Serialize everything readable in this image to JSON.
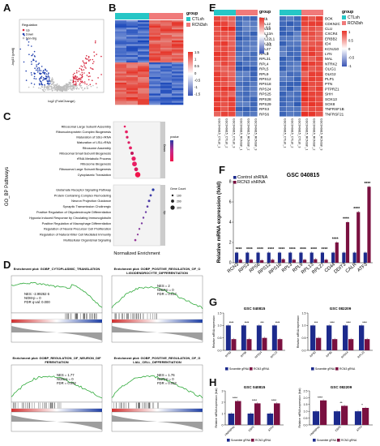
{
  "panels": {
    "A": "A",
    "B": "B",
    "C": "C",
    "D": "D",
    "E": "E",
    "F": "F",
    "G": "G",
    "H": "H"
  },
  "panelA": {
    "legend_title": "Regulation",
    "legend": [
      "Up",
      "Down",
      "Non-Sig"
    ],
    "xlabel": "log2 (FoldChange)",
    "ylabel": "-log10 (padj)",
    "colors": {
      "up": "#d7263d",
      "down": "#1f3fae",
      "ns": "#bdbdbd"
    }
  },
  "panelB": {
    "legend_title": "group",
    "groups": [
      "CTLsh",
      "RCN3sh"
    ],
    "group_colors": [
      "#26c6c6",
      "#f07a7a"
    ],
    "scale_ticks": [
      "1.5",
      "1",
      "0.5",
      "0",
      "-0.5",
      "-1",
      "-1.5"
    ]
  },
  "panelC": {
    "ylabel": "GO_BP Pathways",
    "xlabel": "Normalized Enrichment",
    "down_terms": [
      "Ribosomal Large Subunit Assembly",
      "Ribonucleoprotein Complex Biogenesis",
      "Maturation of SSU-rRNA",
      "Maturation of LSU-rRNA",
      "Ribosome Assembly",
      "Ribosomal Small Subunit Biogenesis",
      "rRNA Metabolic Process",
      "Ribosome Biogenesis",
      "Ribosomal Large Subunit Biogenesis",
      "Cytoplasmic Translation"
    ],
    "up_terms": [
      "Glutamate Receptor Signaling Pathway",
      "Protein Containing Complex Remodeling",
      "Neuron Projection Guidance",
      "Synaptic Transmission Cholinergic",
      "Positive Regulation of Oligodendrocyte Differentiation",
      "Hypoxia Induced Response by Circulating Immunoglobulin",
      "Positive Regulation of Macrophage Differentiation",
      "Regulation of Neural Precursor Cell Proliferation",
      "Regulation of Natural Killer Cell Mediated Immunity",
      "Multicellular Organismal Signaling"
    ],
    "strip_labels": [
      "Down",
      "Up"
    ],
    "legend_pvalue_title": "pvalue",
    "legend_gene_count_title": "Gene Count",
    "gene_count_labels": [
      "100",
      "200",
      "300"
    ]
  },
  "panelD": {
    "plots": [
      {
        "title": "Enrichment plot: GOBP_CYTOPLASMIC_TRANSLATION",
        "nes": "NES: -2.99262 6",
        "nom": "NOM-p = 0",
        "fdr": "FDR q-val: 0.000"
      },
      {
        "title": "Enrichment plot: GOBP_POSITIVE_REGULATION_OF_OLIGODENDROCYTE_DIFFERENTIATION",
        "nes": "NES = 2",
        "nom": "NOM-p = 0",
        "fdr": "FDR = 0.017"
      },
      {
        "title": "Enrichment plot: GOBP_REGULATION_OF_NEURON_DIFFERENTIATION",
        "nes": "NES = 1.77",
        "nom": "NOM-p = 0",
        "fdr": "FDR = 0.062"
      },
      {
        "title": "Enrichment plot: GOBP_POSITIVE_REGULATION_OF_GLIAL_CELL_DIFFERENTIATION",
        "nes": "NES = 1.76",
        "nom": "NOM-p = 0",
        "fdr": "FDR = 0.062"
      }
    ]
  },
  "panelE": {
    "legend_title": "group",
    "groups": [
      "CTLsh",
      "RCN3sh"
    ],
    "group_colors": [
      "#26c6c6",
      "#f07a7a"
    ],
    "scale_ticks": [
      "1",
      "0.5",
      "0",
      "-0.5",
      "-1"
    ],
    "genes_left": [
      "FAU",
      "RPL12",
      "RPL13",
      "RPL13A",
      "RPL22L1",
      "RPL23",
      "RPL27",
      "RPL3",
      "RPL31",
      "RPL4",
      "RPL5",
      "RPL9",
      "RPS12",
      "RPS18",
      "RPS24",
      "RPS25",
      "RPS28",
      "RPS29",
      "RPS3",
      "RPS6"
    ],
    "genes_right": [
      "BOK",
      "CDKN2C",
      "CLU",
      "CXCR4",
      "ERBB2",
      "ID4",
      "KCNJ10",
      "LYN",
      "MAL",
      "NTRK2",
      "OLIG1",
      "OLIG2",
      "PLP1",
      "PTN",
      "PTPRZ1",
      "SHH",
      "SOX13",
      "SOX8",
      "TNFRSF1B",
      "TNFRSF21"
    ],
    "samples_left": [
      "GSC040815_CTLsh_1",
      "GSC040815_CTLsh_2",
      "GSC040815_CTLsh_3",
      "GSC040815_RCN3sh_1",
      "GSC040815_RCN3sh_2",
      "GSC040815_RCN3sh_3"
    ],
    "samples_right": [
      "GSC040815_CTLsh_1",
      "GSC040815_CTLsh_2",
      "GSC040815_CTLsh_3",
      "GSC040815_RCN3sh_1",
      "GSC040815_RCN3sh_2",
      "GSC040815_RCN3sh_3"
    ]
  },
  "chart_data": [
    {
      "id": "F",
      "type": "bar",
      "title": "GSC 040815",
      "ylabel": "Relative mRNA expression (fold)",
      "categories": [
        "RCN3",
        "RPS3",
        "RPS6",
        "RPS12",
        "RPS18",
        "RPL3",
        "RPL9",
        "RPL13",
        "RPL27",
        "CD44",
        "DDIT3",
        "CALR",
        "ATF3"
      ],
      "series": [
        {
          "name": "Control shRNA",
          "color": "#1c2a8c",
          "values": [
            1,
            1,
            1,
            1,
            1,
            1,
            1,
            1,
            1,
            1,
            1,
            1,
            1
          ]
        },
        {
          "name": "RCN3 shRNA",
          "color": "#7a1040",
          "values": [
            0.3,
            0.3,
            0.25,
            0.3,
            0.35,
            0.3,
            0.3,
            0.35,
            0.3,
            2.0,
            4.0,
            5.0,
            7.5
          ]
        }
      ],
      "ylim": [
        0,
        8
      ],
      "yticks": [
        "0",
        "2",
        "4",
        "6",
        "8"
      ],
      "significance": [
        "****",
        "****",
        "****",
        "****",
        "****",
        "****",
        "****",
        "****",
        "****",
        "****",
        "****",
        "****",
        "****"
      ]
    },
    {
      "id": "G1",
      "type": "bar",
      "title": "GSC 040815",
      "ylabel": "Relative mRNA expression",
      "categories": [
        "RPS3",
        "RPS6",
        "RPS14",
        "RPL23"
      ],
      "series": [
        {
          "name": "Scramble gRNA",
          "color": "#1c2a8c",
          "values": [
            1,
            1,
            1,
            1
          ]
        },
        {
          "name": "RCN3 gRNA",
          "color": "#7a1040",
          "values": [
            0.45,
            0.45,
            0.5,
            0.45
          ]
        }
      ],
      "ylim": [
        0,
        1.5
      ],
      "yticks": [
        "0.0",
        "0.5",
        "1.0",
        "1.5"
      ],
      "significance": [
        "****",
        "****",
        "***",
        "****"
      ]
    },
    {
      "id": "G2",
      "type": "bar",
      "title": "GSC 082209",
      "ylabel": "Relative mRNA expression",
      "categories": [
        "RPS3",
        "RPS6",
        "RPS14",
        "RPL23"
      ],
      "series": [
        {
          "name": "Scramble gRNA",
          "color": "#1c2a8c",
          "values": [
            1,
            1,
            1,
            1
          ]
        },
        {
          "name": "RCN3 gRNA",
          "color": "#7a1040",
          "values": [
            0.5,
            0.45,
            0.45,
            0.45
          ]
        }
      ],
      "ylim": [
        0,
        1.5
      ],
      "yticks": [
        "0.0",
        "0.5",
        "1.0",
        "1.5"
      ],
      "significance": [
        "***",
        "****",
        "****",
        "****"
      ]
    },
    {
      "id": "H1",
      "type": "bar",
      "title": "GSC 040815",
      "ylabel": "Relative mRNA expression (fold)",
      "categories": [
        "HNRNPA1",
        "XBP1",
        "ATF4"
      ],
      "series": [
        {
          "name": "Scramble gRNA",
          "color": "#1c2a8c",
          "values": [
            1,
            1,
            1
          ]
        },
        {
          "name": "RCN3 gRNA",
          "color": "#7a1040",
          "values": [
            2.1,
            1.9,
            1.9
          ]
        }
      ],
      "ylim": [
        0,
        3
      ],
      "yticks": [
        "0",
        "1",
        "2",
        "3"
      ],
      "significance": [
        "****",
        "****",
        "****"
      ]
    },
    {
      "id": "H2",
      "type": "bar",
      "title": "GSC 082209",
      "ylabel": "Relative mRNA expression (fold)",
      "categories": [
        "HNRNPA1",
        "XBP1",
        "ATF4"
      ],
      "series": [
        {
          "name": "Scramble gRNA",
          "color": "#1c2a8c",
          "values": [
            1,
            1,
            1
          ]
        },
        {
          "name": "RCN3 gRNA",
          "color": "#7a1040",
          "values": [
            1.8,
            1.4,
            1.25
          ]
        }
      ],
      "ylim": [
        0,
        2.5
      ],
      "yticks": [
        "0.0",
        "0.5",
        "1.0",
        "1.5",
        "2.0",
        "2.5"
      ],
      "significance": [
        "****",
        "**",
        "*"
      ]
    }
  ]
}
